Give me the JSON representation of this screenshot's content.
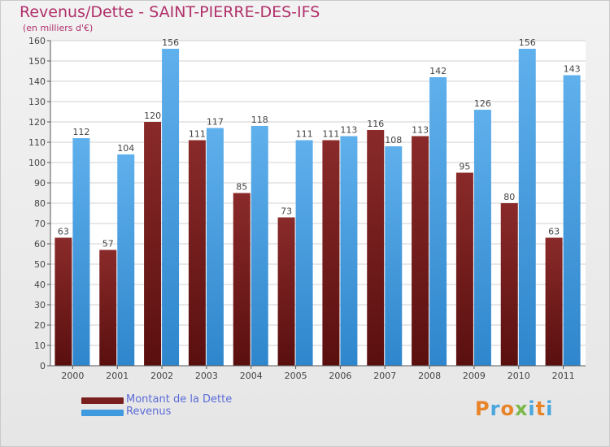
{
  "title": "Revenus/Dette - SAINT-PIERRE-DES-IFS",
  "subtitle": "(en milliers d'€)",
  "logo": {
    "text": "Proxiti",
    "letters": [
      {
        "ch": "P",
        "color": "#e8842a"
      },
      {
        "ch": "r",
        "color": "#4aa6dd"
      },
      {
        "ch": "o",
        "color": "#e8842a"
      },
      {
        "ch": "x",
        "color": "#7cb84a"
      },
      {
        "ch": "i",
        "color": "#4aa6dd"
      },
      {
        "ch": "t",
        "color": "#e8842a"
      },
      {
        "ch": "i",
        "color": "#4aa6dd"
      }
    ]
  },
  "colors": {
    "debt": "#7a1e1e",
    "revenue": "#3f9ae0",
    "axis": "#555555",
    "grid": "#d0d0d0"
  },
  "chart_data": {
    "type": "bar",
    "title": "Revenus/Dette - SAINT-PIERRE-DES-IFS",
    "subtitle": "(en milliers d'€)",
    "xlabel": "",
    "ylabel": "",
    "ylim": [
      0,
      160
    ],
    "yticks": [
      0,
      10,
      20,
      30,
      40,
      50,
      60,
      70,
      80,
      90,
      100,
      110,
      120,
      130,
      140,
      150,
      160
    ],
    "grid": true,
    "legend": "bottom-left",
    "categories": [
      "2000",
      "2001",
      "2002",
      "2003",
      "2004",
      "2005",
      "2006",
      "2007",
      "2008",
      "2009",
      "2010",
      "2011"
    ],
    "series": [
      {
        "name": "Montant de la Dette",
        "color": "#7a1e1e",
        "values": [
          63,
          57,
          120,
          111,
          85,
          73,
          111,
          116,
          113,
          95,
          80,
          63
        ]
      },
      {
        "name": "Revenus",
        "color": "#3f9ae0",
        "values": [
          112,
          104,
          156,
          117,
          118,
          111,
          113,
          108,
          142,
          126,
          156,
          143
        ]
      }
    ]
  }
}
